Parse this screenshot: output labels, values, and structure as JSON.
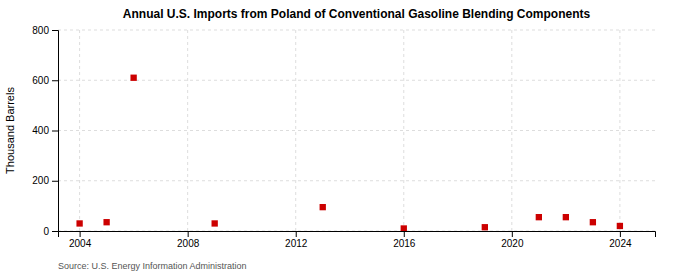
{
  "chart_data": {
    "type": "scatter",
    "title": "Annual U.S. Imports from Poland of Conventional Gasoline Blending Components",
    "y_label": "Thousand Barrels",
    "source": "Source: U.S. Energy Information Administration",
    "x": [
      2004,
      2005,
      2006,
      2009,
      2013,
      2016,
      2019,
      2021,
      2022,
      2023,
      2024
    ],
    "values": [
      30,
      35,
      610,
      30,
      95,
      10,
      15,
      55,
      55,
      35,
      20
    ],
    "color": "#cc0000",
    "marker": "square",
    "xlim": [
      2003.2,
      2025.3
    ],
    "ylim": [
      0,
      800
    ],
    "xticks": [
      2004,
      2008,
      2012,
      2016,
      2020,
      2024
    ],
    "yticks": [
      0,
      200,
      400,
      600,
      800
    ],
    "grid": true
  }
}
